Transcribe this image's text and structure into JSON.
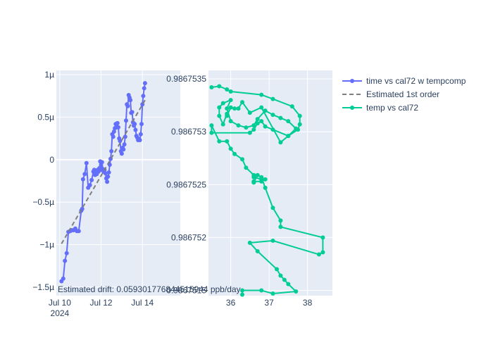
{
  "chart_data": [
    {
      "type": "line",
      "panel": "left",
      "xlim": [
        "2024-07-09T20:00",
        "2024-07-15T20:00"
      ],
      "ylim": [
        -1.6,
        1.05
      ],
      "y_unit_label_suffix": "µ",
      "x_ticks": [
        {
          "value": "2024-07-10T00:00",
          "label": "Jul 10",
          "sublabel": "2024"
        },
        {
          "value": "2024-07-12T00:00",
          "label": "Jul 12"
        },
        {
          "value": "2024-07-14T00:00",
          "label": "Jul 14"
        }
      ],
      "y_ticks": [
        {
          "value": 1,
          "label": "1µ"
        },
        {
          "value": 0.5,
          "label": "0.5µ"
        },
        {
          "value": 0,
          "label": "0"
        },
        {
          "value": -0.5,
          "label": "−0.5µ"
        },
        {
          "value": -1,
          "label": "−1µ"
        },
        {
          "value": -1.5,
          "label": "−1.5µ"
        }
      ],
      "series": [
        {
          "name": "time vs cal72 w tempcomp",
          "color": "#636efa",
          "mode": "lines+markers",
          "points": [
            [
              "2024-07-10T02:00",
              -1.43
            ],
            [
              "2024-07-10T04:00",
              -1.4
            ],
            [
              "2024-07-10T06:00",
              -1.19
            ],
            [
              "2024-07-10T08:00",
              -1.1
            ],
            [
              "2024-07-10T10:00",
              -0.85
            ],
            [
              "2024-07-10T12:00",
              -0.84
            ],
            [
              "2024-07-10T14:00",
              -0.83
            ],
            [
              "2024-07-10T16:00",
              -0.83
            ],
            [
              "2024-07-10T18:00",
              -0.81
            ],
            [
              "2024-07-10T20:00",
              -0.84
            ],
            [
              "2024-07-10T22:00",
              -0.84
            ],
            [
              "2024-07-11T01:00",
              -0.6
            ],
            [
              "2024-07-11T02:00",
              -0.58
            ],
            [
              "2024-07-11T03:00",
              -0.23
            ],
            [
              "2024-07-11T05:00",
              -0.17
            ],
            [
              "2024-07-11T07:00",
              -0.04
            ],
            [
              "2024-07-11T09:00",
              -0.33
            ],
            [
              "2024-07-11T11:00",
              -0.3
            ],
            [
              "2024-07-11T13:00",
              -0.24
            ],
            [
              "2024-07-11T15:00",
              -0.14
            ],
            [
              "2024-07-11T16:00",
              -0.12
            ],
            [
              "2024-07-11T17:00",
              -0.18
            ],
            [
              "2024-07-11T18:00",
              -0.15
            ],
            [
              "2024-07-11T19:00",
              -0.17
            ],
            [
              "2024-07-11T20:00",
              -0.12
            ],
            [
              "2024-07-11T21:00",
              -0.14
            ],
            [
              "2024-07-11T22:00",
              -0.1
            ],
            [
              "2024-07-11T23:00",
              -0.02
            ],
            [
              "2024-07-12T00:00",
              -0.12
            ],
            [
              "2024-07-12T01:00",
              -0.03
            ],
            [
              "2024-07-12T02:00",
              -0.11
            ],
            [
              "2024-07-12T03:00",
              -0.14
            ],
            [
              "2024-07-12T04:00",
              -0.12
            ],
            [
              "2024-07-12T05:00",
              -0.16
            ],
            [
              "2024-07-12T06:00",
              -0.22
            ],
            [
              "2024-07-12T07:00",
              -0.26
            ],
            [
              "2024-07-12T08:00",
              -0.2
            ],
            [
              "2024-07-12T09:00",
              -0.15
            ],
            [
              "2024-07-12T10:00",
              -0.06
            ],
            [
              "2024-07-12T11:00",
              0.01
            ],
            [
              "2024-07-12T12:00",
              0.1
            ],
            [
              "2024-07-12T13:00",
              0.3
            ],
            [
              "2024-07-12T14:00",
              0.27
            ],
            [
              "2024-07-12T15:00",
              0.33
            ],
            [
              "2024-07-12T16:00",
              0.37
            ],
            [
              "2024-07-12T17:00",
              0.42
            ],
            [
              "2024-07-12T18:00",
              0.38
            ],
            [
              "2024-07-12T19:00",
              0.43
            ],
            [
              "2024-07-12T20:00",
              0.38
            ],
            [
              "2024-07-12T21:00",
              0.25
            ],
            [
              "2024-07-12T22:00",
              0.22
            ],
            [
              "2024-07-12T23:00",
              0.1
            ],
            [
              "2024-07-13T00:00",
              0.07
            ],
            [
              "2024-07-13T01:00",
              0.14
            ],
            [
              "2024-07-13T02:00",
              0.12
            ],
            [
              "2024-07-13T03:00",
              0.18
            ],
            [
              "2024-07-13T04:00",
              0.27
            ],
            [
              "2024-07-13T05:00",
              0.46
            ],
            [
              "2024-07-13T06:00",
              0.65
            ],
            [
              "2024-07-13T07:00",
              0.63
            ],
            [
              "2024-07-13T08:00",
              0.76
            ],
            [
              "2024-07-13T09:00",
              0.73
            ],
            [
              "2024-07-13T10:00",
              0.7
            ],
            [
              "2024-07-13T11:00",
              0.55
            ],
            [
              "2024-07-13T12:00",
              0.56
            ],
            [
              "2024-07-13T13:00",
              0.44
            ],
            [
              "2024-07-13T14:00",
              0.4
            ],
            [
              "2024-07-13T15:00",
              0.42
            ],
            [
              "2024-07-13T16:00",
              0.35
            ],
            [
              "2024-07-13T17:00",
              0.28
            ],
            [
              "2024-07-13T18:00",
              0.26
            ],
            [
              "2024-07-13T19:00",
              0.23
            ],
            [
              "2024-07-13T20:00",
              0.24
            ],
            [
              "2024-07-13T21:00",
              0.23
            ],
            [
              "2024-07-13T22:00",
              0.3
            ],
            [
              "2024-07-13T23:00",
              0.42
            ],
            [
              "2024-07-14T00:00",
              0.65
            ],
            [
              "2024-07-14T01:00",
              0.75
            ],
            [
              "2024-07-14T02:00",
              0.84
            ],
            [
              "2024-07-14T03:00",
              0.9
            ]
          ]
        },
        {
          "name": "Estimated 1st order",
          "color": "#7f7f7f",
          "mode": "lines",
          "dash": "dash",
          "points": [
            [
              "2024-07-10T02:00",
              -0.99
            ],
            [
              "2024-07-14T03:00",
              0.7
            ]
          ]
        }
      ],
      "annotation": "Estimated drift:  0.059301776844515944 ppb/day"
    },
    {
      "type": "line",
      "panel": "right",
      "xlim": [
        35.42,
        38.65
      ],
      "ylim": [
        0.98675145,
        0.98675358
      ],
      "x_ticks": [
        {
          "value": 36,
          "label": "36"
        },
        {
          "value": 37,
          "label": "37"
        },
        {
          "value": 38,
          "label": "38"
        }
      ],
      "y_ticks": [
        {
          "value": 0.9867515,
          "label": "0.9867515"
        },
        {
          "value": 0.986752,
          "label": "0.986752"
        },
        {
          "value": 0.9867525,
          "label": "0.9867525"
        },
        {
          "value": 0.986753,
          "label": "0.986753"
        },
        {
          "value": 0.9867535,
          "label": "0.9867535"
        }
      ],
      "series": [
        {
          "name": "temp vs cal72",
          "color": "#00cc96",
          "mode": "lines+markers",
          "points": [
            [
              35.5,
              0.98675342
            ],
            [
              35.7,
              0.98675343
            ],
            [
              35.9,
              0.9867534
            ],
            [
              36.0,
              0.98675338
            ],
            [
              36.8,
              0.98675335
            ],
            [
              37.1,
              0.98675331
            ],
            [
              37.6,
              0.98675324
            ],
            [
              37.8,
              0.98675315
            ],
            [
              37.8,
              0.98675307
            ],
            [
              37.75,
              0.98675302
            ],
            [
              37.5,
              0.98675296
            ],
            [
              37.3,
              0.9867529
            ],
            [
              36.8,
              0.98675323
            ],
            [
              36.5,
              0.98675318
            ],
            [
              36.3,
              0.98675328
            ],
            [
              36.2,
              0.98675322
            ],
            [
              36.1,
              0.98675322
            ],
            [
              36.0,
              0.98675323
            ],
            [
              35.9,
              0.98675315
            ],
            [
              35.9,
              0.98675317
            ],
            [
              35.8,
              0.98675307
            ],
            [
              35.7,
              0.98675315
            ],
            [
              35.7,
              0.98675323
            ],
            [
              35.8,
              0.98675327
            ],
            [
              36.0,
              0.9867533
            ],
            [
              35.9,
              0.98675322
            ],
            [
              36.0,
              0.9867531
            ],
            [
              36.2,
              0.98675306
            ],
            [
              36.4,
              0.98675304
            ],
            [
              36.6,
              0.98675306
            ],
            [
              36.7,
              0.98675312
            ],
            [
              36.9,
              0.9867532
            ],
            [
              37.1,
              0.98675316
            ],
            [
              37.3,
              0.98675313
            ],
            [
              37.5,
              0.9867531
            ],
            [
              37.7,
              0.98675303
            ],
            [
              37.5,
              0.98675296
            ],
            [
              37.1,
              0.98675302
            ],
            [
              36.9,
              0.98675305
            ],
            [
              36.8,
              0.9867531
            ],
            [
              36.7,
              0.98675308
            ],
            [
              36.6,
              0.98675302
            ],
            [
              36.5,
              0.98675299
            ],
            [
              35.5,
              0.98675299
            ],
            [
              35.5,
              0.98675306
            ],
            [
              35.7,
              0.98675291
            ],
            [
              35.9,
              0.98675291
            ],
            [
              36.0,
              0.98675284
            ],
            [
              36.1,
              0.98675279
            ],
            [
              36.3,
              0.98675274
            ],
            [
              36.4,
              0.98675266
            ],
            [
              36.6,
              0.98675259
            ],
            [
              36.6,
              0.98675257
            ],
            [
              36.8,
              0.98675255
            ],
            [
              36.9,
              0.98675255
            ],
            [
              36.8,
              0.98675253
            ],
            [
              36.6,
              0.98675253
            ],
            [
              36.6,
              0.98675252
            ],
            [
              36.6,
              0.98675252
            ],
            [
              36.7,
              0.98675259
            ],
            [
              36.8,
              0.98675257
            ],
            [
              36.9,
              0.98675247
            ],
            [
              37.1,
              0.98675228
            ],
            [
              37.3,
              0.98675216
            ],
            [
              37.3,
              0.9867521
            ],
            [
              38.4,
              0.986752
            ],
            [
              38.4,
              0.98675186
            ],
            [
              38.3,
              0.98675184
            ],
            [
              37.1,
              0.98675197
            ],
            [
              36.5,
              0.98675195
            ],
            [
              36.7,
              0.98675187
            ],
            [
              37.2,
              0.9867517
            ],
            [
              37.3,
              0.98675164
            ],
            [
              37.4,
              0.9867516
            ],
            [
              37.5,
              0.98675156
            ],
            [
              37.7,
              0.98675149
            ],
            [
              37.1,
              0.98675147
            ],
            [
              36.8,
              0.9867515
            ],
            [
              36.3,
              0.9867515
            ],
            [
              36.3,
              0.98675146
            ]
          ]
        }
      ]
    }
  ]
}
